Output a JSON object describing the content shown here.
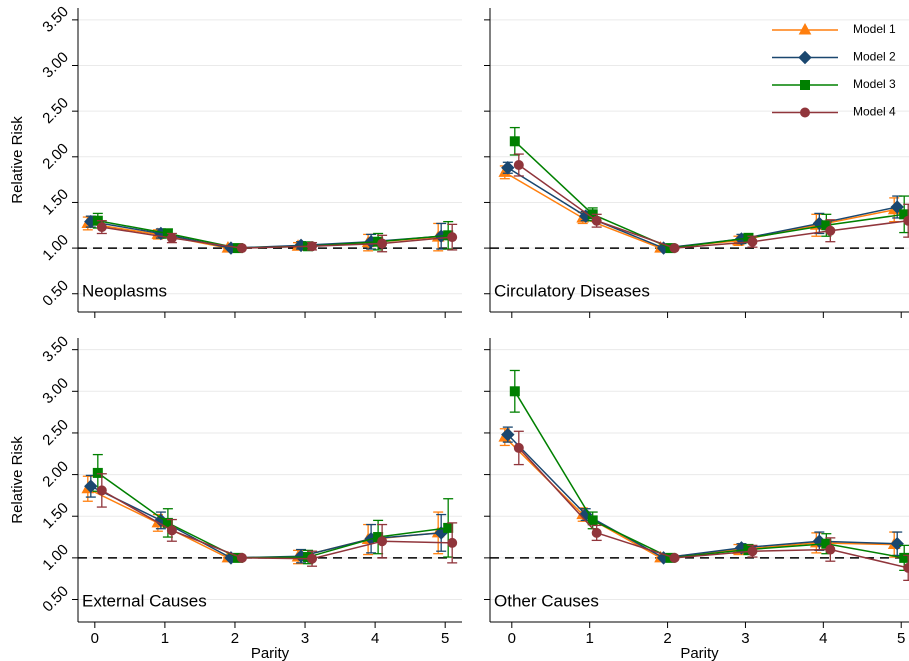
{
  "chart_data": [
    {
      "type": "line",
      "title": "Neoplasms",
      "y_label": "Relative Risk",
      "x": [
        0,
        1,
        2,
        3,
        4,
        5
      ],
      "xlim": [
        -0.24,
        5.24
      ],
      "xticks": [
        0,
        1,
        2,
        3,
        4,
        5
      ],
      "ylim": [
        0.3,
        3.63
      ],
      "yticks": [
        {
          "value": 0.5,
          "label": "0.50"
        },
        {
          "value": 1,
          "label": "1.00"
        },
        {
          "value": 1.5,
          "label": "1.50"
        },
        {
          "value": 2,
          "label": "2.00"
        },
        {
          "value": 2.5,
          "label": "2.50"
        },
        {
          "value": 3,
          "label": "3.00"
        },
        {
          "value": 3.5,
          "label": "3.50"
        }
      ],
      "grid": true,
      "refline": 1,
      "series": [
        {
          "color": "#ff7f0e",
          "marker": "triangle",
          "values": [
            1.27,
            1.15,
            1.0,
            1.02,
            1.06,
            1.12
          ],
          "errors": [
            0.07,
            0.05,
            0,
            0.04,
            0.09,
            0.15
          ]
        },
        {
          "color": "#1a476f",
          "marker": "diamond",
          "values": [
            1.29,
            1.16,
            1.0,
            1.03,
            1.07,
            1.13
          ],
          "errors": [
            0.06,
            0.05,
            0,
            0.04,
            0.08,
            0.14
          ]
        },
        {
          "color": "#008000",
          "marker": "square",
          "values": [
            1.3,
            1.16,
            1.0,
            1.02,
            1.07,
            1.14
          ],
          "errors": [
            0.08,
            0.05,
            0,
            0.04,
            0.09,
            0.15
          ]
        },
        {
          "color": "#90353b",
          "marker": "circle",
          "values": [
            1.23,
            1.11,
            1.0,
            1.02,
            1.05,
            1.12
          ],
          "errors": [
            0.07,
            0.05,
            0,
            0.04,
            0.09,
            0.14
          ]
        }
      ]
    },
    {
      "type": "line",
      "title": "Circulatory Diseases",
      "legend": "upper right",
      "x": [
        0,
        1,
        2,
        3,
        4,
        5
      ],
      "xlim": [
        -0.28,
        5.1
      ],
      "xticks": [
        0,
        1,
        2,
        3,
        4,
        5
      ],
      "ylim": [
        0.3,
        3.63
      ],
      "yticks": [
        0.5,
        1,
        1.5,
        2,
        2.5,
        3,
        3.5
      ],
      "grid": true,
      "refline": 1,
      "series": [
        {
          "name": "Model 1",
          "color": "#ff7f0e",
          "marker": "triangle",
          "values": [
            1.83,
            1.33,
            1.0,
            1.08,
            1.25,
            1.42
          ],
          "errors": [
            0.07,
            0.06,
            0,
            0.05,
            0.12,
            0.13
          ]
        },
        {
          "name": "Model 2",
          "color": "#1a476f",
          "marker": "diamond",
          "values": [
            1.88,
            1.35,
            1.0,
            1.1,
            1.27,
            1.45
          ],
          "errors": [
            0.06,
            0.05,
            0,
            0.05,
            0.11,
            0.12
          ]
        },
        {
          "name": "Model 3",
          "color": "#008000",
          "marker": "square",
          "values": [
            2.17,
            1.37,
            1.0,
            1.11,
            1.25,
            1.37
          ],
          "errors": [
            0.15,
            0.07,
            0,
            0.05,
            0.12,
            0.2
          ]
        },
        {
          "name": "Model 4",
          "color": "#90353b",
          "marker": "circle",
          "values": [
            1.91,
            1.3,
            1.0,
            1.07,
            1.19,
            1.3
          ],
          "errors": [
            0.12,
            0.07,
            0,
            0.06,
            0.12,
            0.18
          ]
        }
      ]
    },
    {
      "type": "line",
      "title": "External Causes",
      "y_label": "Relative Risk",
      "x_label": "Parity",
      "x": [
        0,
        1,
        2,
        3,
        4,
        5
      ],
      "xlim": [
        -0.24,
        5.24
      ],
      "xticks": [
        0,
        1,
        2,
        3,
        4,
        5
      ],
      "ylim": [
        0.23,
        3.64
      ],
      "yticks": [
        {
          "value": 0.5,
          "label": "0.50"
        },
        {
          "value": 1,
          "label": "1.00"
        },
        {
          "value": 1.5,
          "label": "1.50"
        },
        {
          "value": 2,
          "label": "2.00"
        },
        {
          "value": 2.5,
          "label": "2.50"
        },
        {
          "value": 3,
          "label": "3.00"
        },
        {
          "value": 3.5,
          "label": "3.50"
        }
      ],
      "grid": true,
      "refline": 1,
      "series": [
        {
          "color": "#ff7f0e",
          "marker": "triangle",
          "values": [
            1.83,
            1.42,
            1.0,
            1.01,
            1.22,
            1.3
          ],
          "errors": [
            0.15,
            0.1,
            0,
            0.08,
            0.18,
            0.25
          ]
        },
        {
          "color": "#1a476f",
          "marker": "diamond",
          "values": [
            1.86,
            1.45,
            1.0,
            1.02,
            1.23,
            1.3
          ],
          "errors": [
            0.13,
            0.1,
            0,
            0.08,
            0.17,
            0.22
          ]
        },
        {
          "color": "#008000",
          "marker": "square",
          "values": [
            2.02,
            1.42,
            1.0,
            1.01,
            1.25,
            1.36
          ],
          "errors": [
            0.22,
            0.17,
            0,
            0.08,
            0.2,
            0.35
          ]
        },
        {
          "color": "#90353b",
          "marker": "circle",
          "values": [
            1.81,
            1.33,
            1.0,
            0.99,
            1.2,
            1.18
          ],
          "errors": [
            0.2,
            0.13,
            0,
            0.09,
            0.2,
            0.24
          ]
        }
      ]
    },
    {
      "type": "line",
      "title": "Other Causes",
      "x_label": "Parity",
      "x": [
        0,
        1,
        2,
        3,
        4,
        5
      ],
      "xlim": [
        -0.28,
        5.1
      ],
      "xticks": [
        0,
        1,
        2,
        3,
        4,
        5
      ],
      "ylim": [
        0.23,
        3.64
      ],
      "yticks": [
        0.5,
        1,
        1.5,
        2,
        2.5,
        3,
        3.5
      ],
      "grid": true,
      "refline": 1,
      "series": [
        {
          "color": "#ff7f0e",
          "marker": "triangle",
          "values": [
            2.45,
            1.52,
            1.0,
            1.1,
            1.18,
            1.16
          ],
          "errors": [
            0.1,
            0.08,
            0,
            0.06,
            0.12,
            0.15
          ]
        },
        {
          "color": "#1a476f",
          "marker": "diamond",
          "values": [
            2.48,
            1.52,
            1.0,
            1.12,
            1.2,
            1.17
          ],
          "errors": [
            0.09,
            0.07,
            0,
            0.05,
            0.11,
            0.14
          ]
        },
        {
          "color": "#008000",
          "marker": "square",
          "values": [
            3.0,
            1.45,
            1.0,
            1.1,
            1.17,
            1.0
          ],
          "errors": [
            0.25,
            0.1,
            0,
            0.06,
            0.12,
            0.15
          ]
        },
        {
          "color": "#90353b",
          "marker": "circle",
          "values": [
            2.32,
            1.3,
            1.0,
            1.08,
            1.1,
            0.88
          ],
          "errors": [
            0.2,
            0.09,
            0,
            0.07,
            0.14,
            0.15
          ]
        }
      ]
    }
  ]
}
